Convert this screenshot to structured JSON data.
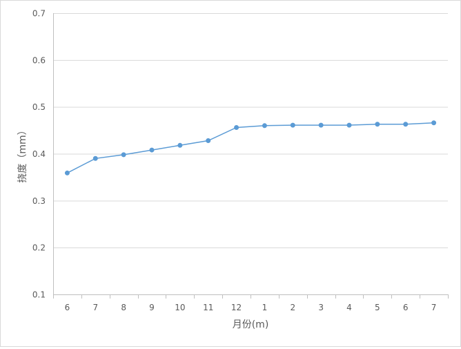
{
  "chart_data": {
    "type": "line",
    "xlabel": "月份(m)",
    "ylabel": "挠度（mm）",
    "categories": [
      "6",
      "7",
      "8",
      "9",
      "10",
      "11",
      "12",
      "1",
      "2",
      "3",
      "4",
      "5",
      "6",
      "7"
    ],
    "series": [
      {
        "values": [
          0.359,
          0.39,
          0.398,
          0.408,
          0.418,
          0.428,
          0.456,
          0.46,
          0.461,
          0.461,
          0.461,
          0.463,
          0.463,
          0.466
        ],
        "color": "#5b9bd5"
      }
    ],
    "ylim": [
      0.1,
      0.7
    ],
    "yticks": [
      0.1,
      0.2,
      0.3,
      0.4,
      0.5,
      0.6,
      0.7
    ],
    "ytick_labels": [
      "0.1",
      "0.2",
      "0.3",
      "0.4",
      "0.5",
      "0.6",
      "0.7"
    ],
    "grid": true,
    "legend": "none"
  }
}
